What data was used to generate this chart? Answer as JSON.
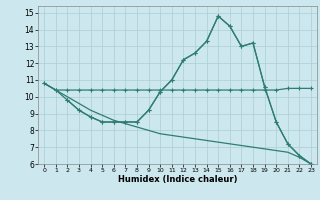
{
  "xlabel": "Humidex (Indice chaleur)",
  "bg_color": "#cce8ee",
  "grid_color": "#aacdd6",
  "line_color": "#2e7d72",
  "xlim": [
    -0.5,
    23.5
  ],
  "ylim": [
    6,
    15.4
  ],
  "xticks": [
    0,
    1,
    2,
    3,
    4,
    5,
    6,
    7,
    8,
    9,
    10,
    11,
    12,
    13,
    14,
    15,
    16,
    17,
    18,
    19,
    20,
    21,
    22,
    23
  ],
  "yticks": [
    6,
    7,
    8,
    9,
    10,
    11,
    12,
    13,
    14,
    15
  ],
  "line1_x": [
    0,
    1,
    2,
    3,
    4,
    5,
    6,
    7,
    8,
    9,
    10,
    11,
    12,
    13,
    14,
    15,
    16,
    17,
    18,
    19,
    20,
    21,
    22,
    23
  ],
  "line1_y": [
    10.8,
    10.4,
    10.4,
    10.4,
    10.4,
    10.4,
    10.4,
    10.4,
    10.4,
    10.4,
    10.4,
    10.4,
    10.4,
    10.4,
    10.4,
    10.4,
    10.4,
    10.4,
    10.4,
    10.4,
    10.4,
    10.5,
    10.5,
    10.5
  ],
  "line2_x": [
    0,
    1,
    2,
    3,
    4,
    5,
    6,
    7,
    8,
    9,
    10,
    11,
    12,
    13,
    14,
    15,
    16,
    17,
    18,
    19,
    20,
    21,
    22,
    23
  ],
  "line2_y": [
    10.8,
    10.4,
    9.8,
    9.2,
    8.8,
    8.5,
    8.5,
    8.5,
    8.5,
    9.2,
    10.3,
    11.0,
    12.2,
    12.6,
    13.3,
    14.8,
    14.2,
    13.0,
    13.2,
    10.6,
    8.5,
    7.2,
    6.5,
    6.0
  ],
  "line3_x": [
    0,
    1,
    2,
    3,
    4,
    5,
    6,
    7,
    8,
    9,
    10,
    11,
    12,
    13,
    14,
    15,
    16,
    17,
    18,
    19,
    20,
    21,
    22,
    23
  ],
  "line3_y": [
    10.8,
    10.4,
    10.0,
    9.6,
    9.2,
    8.9,
    8.6,
    8.4,
    8.2,
    8.0,
    7.8,
    7.7,
    7.6,
    7.5,
    7.4,
    7.3,
    7.2,
    7.1,
    7.0,
    6.9,
    6.8,
    6.7,
    6.4,
    6.0
  ],
  "line4_x": [
    2,
    3,
    4,
    5,
    6,
    7,
    8,
    9,
    10,
    11,
    12,
    13,
    14,
    15,
    16,
    17,
    18,
    19,
    20,
    21,
    22,
    23
  ],
  "line4_y": [
    9.8,
    9.2,
    8.8,
    8.5,
    8.5,
    8.5,
    8.5,
    9.2,
    10.3,
    11.0,
    12.2,
    12.6,
    13.3,
    14.8,
    14.2,
    13.0,
    13.2,
    10.6,
    8.5,
    7.2,
    6.5,
    6.0
  ]
}
